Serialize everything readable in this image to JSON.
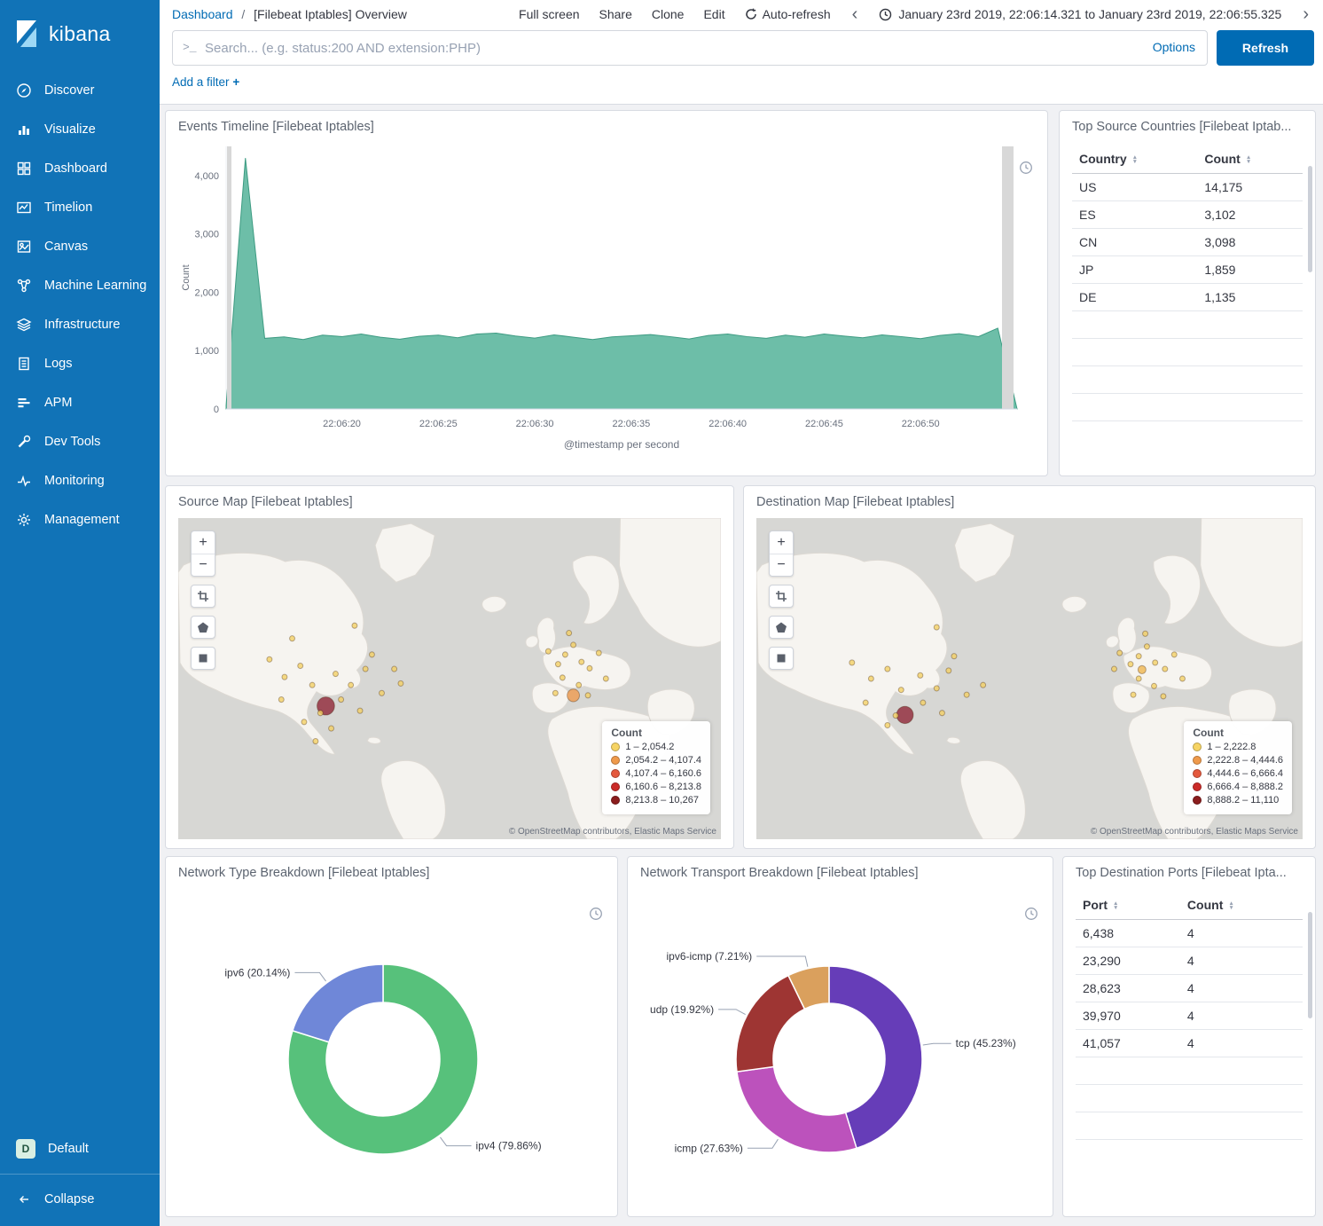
{
  "sidebar": {
    "logo_text": "kibana",
    "items": [
      {
        "label": "Discover",
        "icon": "compass-icon"
      },
      {
        "label": "Visualize",
        "icon": "bar-chart-icon"
      },
      {
        "label": "Dashboard",
        "icon": "grid-icon"
      },
      {
        "label": "Timelion",
        "icon": "timelion-icon"
      },
      {
        "label": "Canvas",
        "icon": "canvas-icon"
      },
      {
        "label": "Machine Learning",
        "icon": "machine-learning-icon"
      },
      {
        "label": "Infrastructure",
        "icon": "infrastructure-icon"
      },
      {
        "label": "Logs",
        "icon": "logs-icon"
      },
      {
        "label": "APM",
        "icon": "apm-icon"
      },
      {
        "label": "Dev Tools",
        "icon": "wrench-icon"
      },
      {
        "label": "Monitoring",
        "icon": "monitoring-icon"
      },
      {
        "label": "Management",
        "icon": "gear-icon"
      }
    ],
    "space": {
      "badge": "D",
      "label": "Default"
    },
    "collapse_label": "Collapse"
  },
  "header": {
    "breadcrumb": {
      "root": "Dashboard",
      "separator": "/",
      "current": "[Filebeat Iptables] Overview"
    },
    "menu": [
      "Full screen",
      "Share",
      "Clone",
      "Edit"
    ],
    "auto_refresh_label": "Auto-refresh",
    "time_range": "January 23rd 2019, 22:06:14.321 to January 23rd 2019, 22:06:55.325"
  },
  "search": {
    "placeholder": "Search... (e.g. status:200 AND extension:PHP)",
    "options_label": "Options",
    "refresh_label": "Refresh"
  },
  "filter": {
    "add_label": "Add a filter",
    "plus": "+"
  },
  "map_controls": {
    "zoom_in": "+",
    "zoom_out": "−"
  },
  "panels": {
    "events_timeline": {
      "title": "Events Timeline [Filebeat Iptables]",
      "chart_data": {
        "type": "area",
        "title": "Events Timeline [Filebeat Iptables]",
        "xlabel": "@timestamp per second",
        "ylabel": "Count",
        "ylim": [
          0,
          4500
        ],
        "yticks": [
          0,
          1000,
          2000,
          3000,
          4000
        ],
        "ytick_labels": [
          "0",
          "1,000",
          "2,000",
          "3,000",
          "4,000"
        ],
        "xticks": [
          {
            "index": 6,
            "label": "22:06:20"
          },
          {
            "index": 11,
            "label": "22:06:25"
          },
          {
            "index": 16,
            "label": "22:06:30"
          },
          {
            "index": 21,
            "label": "22:06:35"
          },
          {
            "index": 26,
            "label": "22:06:40"
          },
          {
            "index": 31,
            "label": "22:06:45"
          },
          {
            "index": 36,
            "label": "22:06:50"
          }
        ],
        "values": [
          60,
          4300,
          1210,
          1235,
          1190,
          1265,
          1240,
          1285,
          1230,
          1195,
          1245,
          1265,
          1220,
          1285,
          1300,
          1250,
          1215,
          1270,
          1230,
          1190,
          1235,
          1255,
          1275,
          1240,
          1200,
          1260,
          1285,
          1240,
          1210,
          1265,
          1230,
          1285,
          1250,
          1220,
          1270,
          1240,
          1205,
          1260,
          1290,
          1240,
          1385,
          0
        ],
        "color": "#54b399",
        "line_color": "#3d9b82"
      }
    },
    "top_source_countries": {
      "title": "Top Source Countries [Filebeat Iptab...",
      "columns": [
        "Country",
        "Count"
      ],
      "rows": [
        [
          "US",
          "14,175"
        ],
        [
          "ES",
          "3,102"
        ],
        [
          "CN",
          "3,098"
        ],
        [
          "JP",
          "1,859"
        ],
        [
          "DE",
          "1,135"
        ]
      ],
      "empty_rows": 4,
      "chart_data": {
        "type": "table",
        "columns": [
          "Country",
          "Count"
        ],
        "rows": [
          [
            "US",
            14175
          ],
          [
            "ES",
            3102
          ],
          [
            "CN",
            3098
          ],
          [
            "JP",
            1859
          ],
          [
            "DE",
            1135
          ]
        ]
      }
    },
    "source_map": {
      "title": "Source Map [Filebeat Iptables]",
      "legend": {
        "title": "Count",
        "items": [
          {
            "label": "1 – 2,054.2",
            "color": "#f6d464"
          },
          {
            "label": "2,054.2 – 4,107.4",
            "color": "#ef9a4b"
          },
          {
            "label": "4,107.4 – 6,160.6",
            "color": "#e4593d"
          },
          {
            "label": "6,160.6 – 8,213.8",
            "color": "#cb2b29"
          },
          {
            "label": "8,213.8 – 10,267",
            "color": "#8b1d1d"
          }
        ]
      },
      "attribution": "© OpenStreetMap contributors, Elastic Maps Service",
      "chart_data": {
        "type": "map",
        "markers": [
          {
            "x": 0.272,
            "y": 0.585,
            "r": 10,
            "color": "#8e2333"
          },
          {
            "x": 0.728,
            "y": 0.552,
            "r": 7,
            "color": "#ef9a4b"
          },
          {
            "x": 0.168,
            "y": 0.44,
            "r": 3,
            "color": "#f3cf63"
          },
          {
            "x": 0.196,
            "y": 0.495,
            "r": 3,
            "color": "#f3cf63"
          },
          {
            "x": 0.225,
            "y": 0.46,
            "r": 3,
            "color": "#f3cf63"
          },
          {
            "x": 0.247,
            "y": 0.52,
            "r": 3,
            "color": "#f3cf63"
          },
          {
            "x": 0.29,
            "y": 0.485,
            "r": 3,
            "color": "#f3cf63"
          },
          {
            "x": 0.318,
            "y": 0.52,
            "r": 3,
            "color": "#f3cf63"
          },
          {
            "x": 0.345,
            "y": 0.47,
            "r": 3,
            "color": "#f3cf63"
          },
          {
            "x": 0.3,
            "y": 0.565,
            "r": 3,
            "color": "#f3cf63"
          },
          {
            "x": 0.262,
            "y": 0.607,
            "r": 3,
            "color": "#f3cf63"
          },
          {
            "x": 0.335,
            "y": 0.6,
            "r": 3,
            "color": "#f3cf63"
          },
          {
            "x": 0.375,
            "y": 0.545,
            "r": 3,
            "color": "#f3cf63"
          },
          {
            "x": 0.398,
            "y": 0.47,
            "r": 3,
            "color": "#f3cf63"
          },
          {
            "x": 0.19,
            "y": 0.565,
            "r": 3,
            "color": "#f3cf63"
          },
          {
            "x": 0.232,
            "y": 0.635,
            "r": 3,
            "color": "#f3cf63"
          },
          {
            "x": 0.357,
            "y": 0.425,
            "r": 3,
            "color": "#f3cf63"
          },
          {
            "x": 0.41,
            "y": 0.515,
            "r": 3,
            "color": "#f3cf63"
          },
          {
            "x": 0.325,
            "y": 0.335,
            "r": 3,
            "color": "#f3cf63"
          },
          {
            "x": 0.21,
            "y": 0.375,
            "r": 3,
            "color": "#f3cf63"
          },
          {
            "x": 0.253,
            "y": 0.695,
            "r": 3,
            "color": "#f3cf63"
          },
          {
            "x": 0.282,
            "y": 0.655,
            "r": 3,
            "color": "#f3cf63"
          },
          {
            "x": 0.682,
            "y": 0.415,
            "r": 3,
            "color": "#f3cf63"
          },
          {
            "x": 0.7,
            "y": 0.455,
            "r": 3,
            "color": "#f3cf63"
          },
          {
            "x": 0.713,
            "y": 0.425,
            "r": 3,
            "color": "#f3cf63"
          },
          {
            "x": 0.728,
            "y": 0.395,
            "r": 3,
            "color": "#f3cf63"
          },
          {
            "x": 0.743,
            "y": 0.448,
            "r": 3,
            "color": "#f3cf63"
          },
          {
            "x": 0.708,
            "y": 0.497,
            "r": 3,
            "color": "#f3cf63"
          },
          {
            "x": 0.738,
            "y": 0.52,
            "r": 3,
            "color": "#f3cf63"
          },
          {
            "x": 0.758,
            "y": 0.468,
            "r": 3,
            "color": "#f3cf63"
          },
          {
            "x": 0.72,
            "y": 0.358,
            "r": 3,
            "color": "#f3cf63"
          },
          {
            "x": 0.775,
            "y": 0.42,
            "r": 3,
            "color": "#f3cf63"
          },
          {
            "x": 0.695,
            "y": 0.545,
            "r": 3,
            "color": "#f3cf63"
          },
          {
            "x": 0.755,
            "y": 0.552,
            "r": 3,
            "color": "#f3cf63"
          },
          {
            "x": 0.788,
            "y": 0.5,
            "r": 3,
            "color": "#f3cf63"
          }
        ]
      }
    },
    "destination_map": {
      "title": "Destination Map [Filebeat Iptables]",
      "legend": {
        "title": "Count",
        "items": [
          {
            "label": "1 – 2,222.8",
            "color": "#f6d464"
          },
          {
            "label": "2,222.8 – 4,444.6",
            "color": "#ef9a4b"
          },
          {
            "label": "4,444.6 – 6,666.4",
            "color": "#e4593d"
          },
          {
            "label": "6,666.4 – 8,888.2",
            "color": "#cb2b29"
          },
          {
            "label": "8,888.2 – 11,110",
            "color": "#8b1d1d"
          }
        ]
      },
      "attribution": "© OpenStreetMap contributors, Elastic Maps Service",
      "chart_data": {
        "type": "map",
        "markers": [
          {
            "x": 0.272,
            "y": 0.613,
            "r": 9.5,
            "color": "#8e2333"
          },
          {
            "x": 0.175,
            "y": 0.45,
            "r": 3,
            "color": "#f3cf63"
          },
          {
            "x": 0.21,
            "y": 0.5,
            "r": 3,
            "color": "#f3cf63"
          },
          {
            "x": 0.24,
            "y": 0.47,
            "r": 3,
            "color": "#f3cf63"
          },
          {
            "x": 0.265,
            "y": 0.535,
            "r": 3,
            "color": "#f3cf63"
          },
          {
            "x": 0.3,
            "y": 0.49,
            "r": 3,
            "color": "#f3cf63"
          },
          {
            "x": 0.33,
            "y": 0.53,
            "r": 3,
            "color": "#f3cf63"
          },
          {
            "x": 0.352,
            "y": 0.475,
            "r": 3,
            "color": "#f3cf63"
          },
          {
            "x": 0.305,
            "y": 0.575,
            "r": 3,
            "color": "#f3cf63"
          },
          {
            "x": 0.255,
            "y": 0.615,
            "r": 3,
            "color": "#f3cf63"
          },
          {
            "x": 0.34,
            "y": 0.607,
            "r": 3,
            "color": "#f3cf63"
          },
          {
            "x": 0.385,
            "y": 0.55,
            "r": 3,
            "color": "#f3cf63"
          },
          {
            "x": 0.2,
            "y": 0.575,
            "r": 3,
            "color": "#f3cf63"
          },
          {
            "x": 0.24,
            "y": 0.645,
            "r": 3,
            "color": "#f3cf63"
          },
          {
            "x": 0.362,
            "y": 0.43,
            "r": 3,
            "color": "#f3cf63"
          },
          {
            "x": 0.415,
            "y": 0.52,
            "r": 3,
            "color": "#f3cf63"
          },
          {
            "x": 0.33,
            "y": 0.34,
            "r": 3,
            "color": "#f3cf63"
          },
          {
            "x": 0.665,
            "y": 0.42,
            "r": 3,
            "color": "#f3cf63"
          },
          {
            "x": 0.685,
            "y": 0.455,
            "r": 3,
            "color": "#f3cf63"
          },
          {
            "x": 0.7,
            "y": 0.43,
            "r": 3,
            "color": "#f3cf63"
          },
          {
            "x": 0.715,
            "y": 0.4,
            "r": 3,
            "color": "#f3cf63"
          },
          {
            "x": 0.73,
            "y": 0.45,
            "r": 3,
            "color": "#f3cf63"
          },
          {
            "x": 0.7,
            "y": 0.5,
            "r": 3,
            "color": "#f3cf63"
          },
          {
            "x": 0.728,
            "y": 0.523,
            "r": 3,
            "color": "#f3cf63"
          },
          {
            "x": 0.748,
            "y": 0.47,
            "r": 3,
            "color": "#f3cf63"
          },
          {
            "x": 0.712,
            "y": 0.36,
            "r": 3,
            "color": "#f3cf63"
          },
          {
            "x": 0.765,
            "y": 0.425,
            "r": 3,
            "color": "#f3cf63"
          },
          {
            "x": 0.69,
            "y": 0.55,
            "r": 3,
            "color": "#f3cf63"
          },
          {
            "x": 0.745,
            "y": 0.555,
            "r": 3,
            "color": "#f3cf63"
          },
          {
            "x": 0.78,
            "y": 0.5,
            "r": 3,
            "color": "#f3cf63"
          },
          {
            "x": 0.655,
            "y": 0.47,
            "r": 3,
            "color": "#f3cf63"
          },
          {
            "x": 0.706,
            "y": 0.472,
            "r": 4.5,
            "color": "#efb54b"
          }
        ]
      }
    },
    "network_type": {
      "title": "Network Type Breakdown [Filebeat Iptables]",
      "chart_data": {
        "type": "pie",
        "slices": [
          {
            "label": "ipv4 (79.86%)",
            "value": 79.86,
            "color": "#57c17b"
          },
          {
            "label": "ipv6 (20.14%)",
            "value": 20.14,
            "color": "#6f87d8"
          }
        ]
      }
    },
    "network_transport": {
      "title": "Network Transport Breakdown [Filebeat Iptables]",
      "chart_data": {
        "type": "pie",
        "slices": [
          {
            "label": "tcp (45.23%)",
            "value": 45.23,
            "color": "#663db8"
          },
          {
            "label": "icmp (27.63%)",
            "value": 27.63,
            "color": "#bc52bc"
          },
          {
            "label": "udp (19.92%)",
            "value": 19.92,
            "color": "#9e3533"
          },
          {
            "label": "ipv6-icmp (7.21%)",
            "value": 7.21,
            "color": "#daa05d"
          }
        ]
      }
    },
    "top_destination_ports": {
      "title": "Top Destination Ports [Filebeat Ipta...",
      "columns": [
        "Port",
        "Count"
      ],
      "rows": [
        [
          "6,438",
          "4"
        ],
        [
          "23,290",
          "4"
        ],
        [
          "28,623",
          "4"
        ],
        [
          "39,970",
          "4"
        ],
        [
          "41,057",
          "4"
        ]
      ],
      "empty_rows": 3,
      "chart_data": {
        "type": "table",
        "columns": [
          "Port",
          "Count"
        ],
        "rows": [
          [
            "6,438",
            4
          ],
          [
            "23,290",
            4
          ],
          [
            "28,623",
            4
          ],
          [
            "39,970",
            4
          ],
          [
            "41,057",
            4
          ]
        ]
      }
    }
  }
}
